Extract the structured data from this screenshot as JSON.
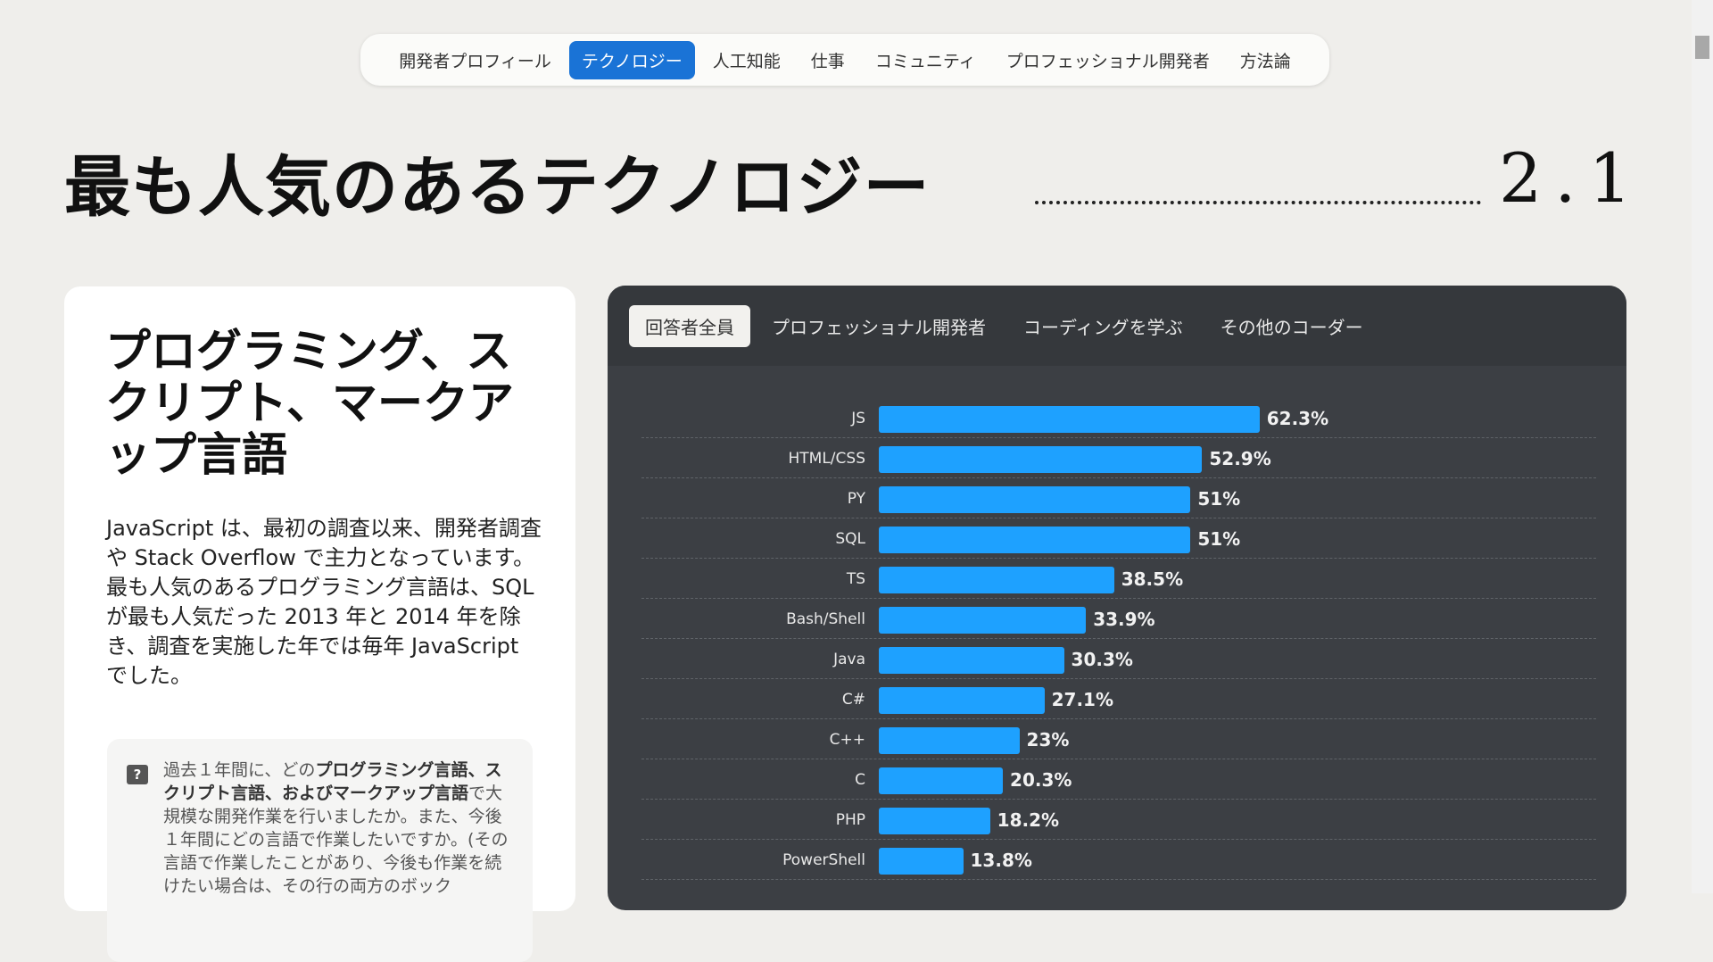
{
  "nav": {
    "items": [
      "開発者プロフィール",
      "テクノロジー",
      "人工知能",
      "仕事",
      "コミュニティ",
      "プロフェッショナル開発者",
      "方法論"
    ],
    "active": 1
  },
  "page": {
    "title": "最も人気のあるテクノロジー",
    "section_number": "2.1"
  },
  "card": {
    "heading": "プログラミング、スクリプト、マークアップ言語",
    "body": "JavaScript は、最初の調査以来、開発者調査や Stack Overflow で主力となっています。最も人気のあるプログラミング言語は、SQL が最も人気だった 2013 年と 2014 年を除き、調査を実施した年では毎年 JavaScript でした。",
    "question_pre": "過去１年間に、どの",
    "question_bold": "プログラミング言語、スクリプト言語、およびマークアップ言語",
    "question_post": "で大規模な開発作業を行いましたか。また、今後１年間にどの言語で作業したいですか。(その言語で作業したことがあり、今後も作業を続けたい場合は、その行の両方のボック"
  },
  "tabs": {
    "items": [
      "回答者全員",
      "プロフェッショナル開発者",
      "コーディングを学ぶ",
      "その他のコーダー"
    ],
    "active": 0
  },
  "chart_data": {
    "type": "bar",
    "orientation": "horizontal",
    "categories": [
      "JS",
      "HTML/CSS",
      "PY",
      "SQL",
      "TS",
      "Bash/Shell",
      "Java",
      "C#",
      "C++",
      "C",
      "PHP",
      "PowerShell"
    ],
    "values": [
      62.3,
      52.9,
      51,
      51,
      38.5,
      33.9,
      30.3,
      27.1,
      23,
      20.3,
      18.2,
      13.8
    ],
    "labels": [
      "62.3%",
      "52.9%",
      "51%",
      "51%",
      "38.5%",
      "33.9%",
      "30.3%",
      "27.1%",
      "23%",
      "20.3%",
      "18.2%",
      "13.8%"
    ],
    "color": "#1ea1ff"
  }
}
